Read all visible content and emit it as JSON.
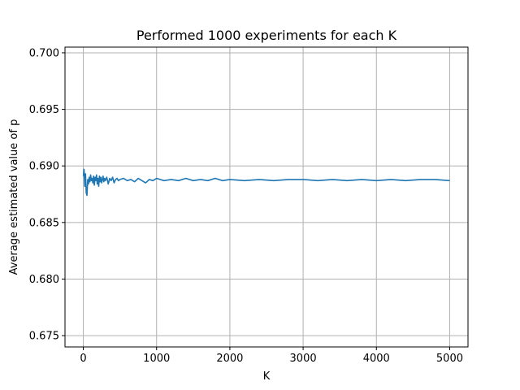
{
  "chart_data": {
    "type": "line",
    "title": "Performed 1000 experiments for each K",
    "xlabel": "K",
    "ylabel": "Average estimated value of p",
    "xlim": [
      -250,
      5250
    ],
    "ylim": [
      0.674,
      0.7005
    ],
    "xticks": [
      0,
      1000,
      2000,
      3000,
      4000,
      5000
    ],
    "yticks": [
      0.675,
      0.68,
      0.685,
      0.69,
      0.695,
      0.7
    ],
    "xtick_labels": [
      "0",
      "1000",
      "2000",
      "3000",
      "4000",
      "5000"
    ],
    "ytick_labels": [
      "0.675",
      "0.680",
      "0.685",
      "0.690",
      "0.695",
      "0.700"
    ],
    "grid": true,
    "line_color": "#1f77b4",
    "series": [
      {
        "x": [
          1,
          10,
          20,
          30,
          40,
          50,
          60,
          70,
          80,
          90,
          100,
          110,
          120,
          130,
          140,
          150,
          160,
          170,
          180,
          190,
          200,
          210,
          220,
          230,
          240,
          250,
          260,
          270,
          280,
          290,
          300,
          320,
          340,
          360,
          380,
          400,
          420,
          440,
          460,
          480,
          500,
          550,
          600,
          650,
          700,
          750,
          800,
          850,
          900,
          950,
          1000,
          1100,
          1200,
          1300,
          1400,
          1500,
          1600,
          1700,
          1800,
          1900,
          2000,
          2200,
          2400,
          2600,
          2800,
          3000,
          3200,
          3400,
          3600,
          3800,
          4000,
          4200,
          4400,
          4600,
          4800,
          5000
        ],
        "y": [
          0.6891,
          0.6897,
          0.6882,
          0.6893,
          0.6876,
          0.6874,
          0.6888,
          0.6884,
          0.689,
          0.6886,
          0.6892,
          0.6887,
          0.6889,
          0.6885,
          0.6891,
          0.6883,
          0.689,
          0.6887,
          0.6892,
          0.6884,
          0.6889,
          0.6882,
          0.6891,
          0.6886,
          0.689,
          0.6885,
          0.6888,
          0.6891,
          0.6886,
          0.6889,
          0.6887,
          0.689,
          0.6884,
          0.6889,
          0.6887,
          0.689,
          0.6885,
          0.6888,
          0.6889,
          0.6887,
          0.6888,
          0.6889,
          0.6887,
          0.6888,
          0.6886,
          0.6889,
          0.6887,
          0.6885,
          0.6888,
          0.6887,
          0.6889,
          0.6887,
          0.6888,
          0.6887,
          0.6889,
          0.6887,
          0.6888,
          0.6887,
          0.6889,
          0.6887,
          0.6888,
          0.6887,
          0.6888,
          0.6887,
          0.6888,
          0.6888,
          0.6887,
          0.6888,
          0.6887,
          0.6888,
          0.6887,
          0.6888,
          0.6887,
          0.6888,
          0.6888,
          0.6887
        ]
      }
    ]
  }
}
